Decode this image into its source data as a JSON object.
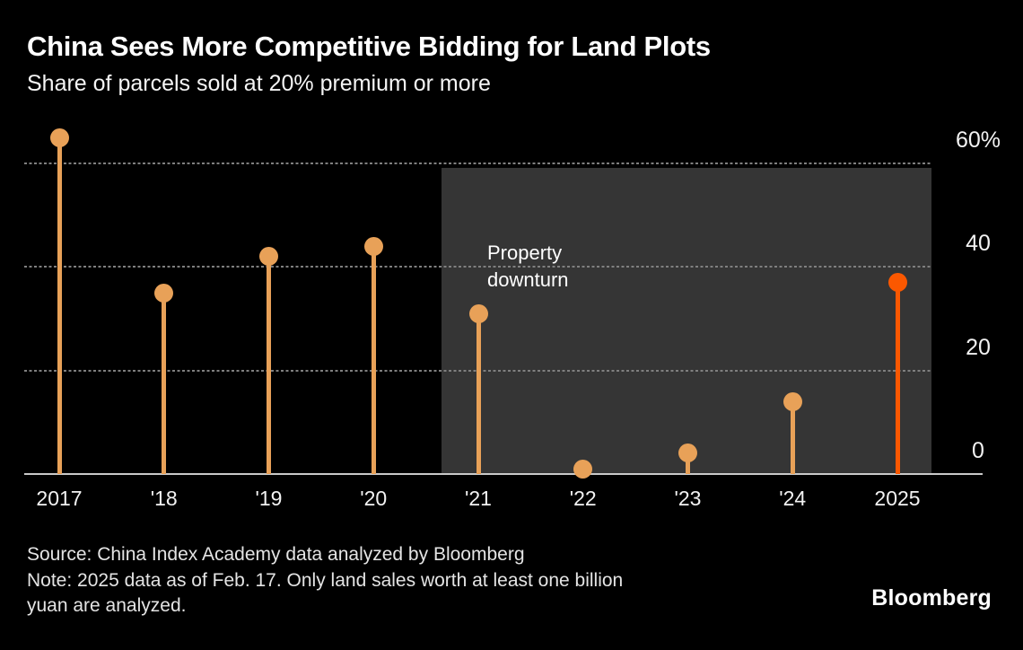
{
  "header": {
    "title": "China Sees More Competitive Bidding for Land Plots",
    "subtitle": "Share of parcels sold at 20% premium or more"
  },
  "chart_data": {
    "type": "scatter",
    "variant": "lollipop",
    "title": "China Sees More Competitive Bidding for Land Plots",
    "subtitle": "Share of parcels sold at 20% premium or more",
    "categories": [
      "2017",
      "'18",
      "'19",
      "'20",
      "'21",
      "'22",
      "'23",
      "'24",
      "2025"
    ],
    "values": [
      65,
      35,
      42,
      44,
      31,
      1,
      4,
      14,
      37
    ],
    "unit": "%",
    "xlabel": "",
    "ylabel": "",
    "ylim": [
      0,
      65
    ],
    "y_ticks": [
      {
        "value": 60,
        "label": "60%"
      },
      {
        "value": 40,
        "label": "40"
      },
      {
        "value": 20,
        "label": "20"
      },
      {
        "value": 0,
        "label": "0"
      }
    ],
    "grid": "dashed-horizontal",
    "legend": "none",
    "highlight_category": "2025",
    "highlight_index": 8,
    "shaded_region": {
      "label": "Property downturn",
      "starts_between": [
        "'20",
        "'21"
      ],
      "ends": "right-edge-of-plot"
    },
    "annotation_lines": [
      "Property",
      "downturn"
    ]
  },
  "colors": {
    "background": "#000000",
    "dot_orange": "#E8A158",
    "highlight_orange": "#FB5800",
    "region_gray": "#353535",
    "gridline_gray": "#7F7F7F",
    "baseline_gray": "#C9C9C9",
    "text_white": "#FFFFFF",
    "notes_gray": "#E4E4E4"
  },
  "footer": {
    "note_lines": [
      "Source: China Index Academy data analyzed by Bloomberg",
      "Note: 2025 data as of Feb. 17. Only land sales worth at least one billion",
      "yuan are analyzed."
    ],
    "brand": "Bloomberg"
  }
}
